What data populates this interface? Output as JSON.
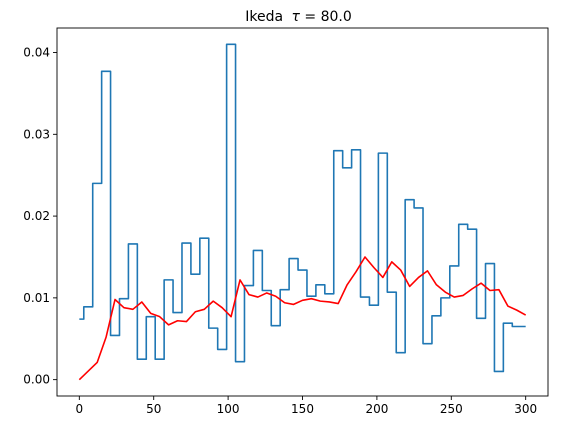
{
  "chart_data": {
    "type": "line",
    "title_prefix": "Ikeda",
    "title_symbol": "τ",
    "title_value": " = 80.0",
    "xlabel": "",
    "ylabel": "",
    "xlim": [
      -15,
      315
    ],
    "ylim": [
      -0.002,
      0.043
    ],
    "xticks": [
      0,
      50,
      100,
      150,
      200,
      250,
      300
    ],
    "xtick_labels": [
      "0",
      "50",
      "100",
      "150",
      "200",
      "250",
      "300"
    ],
    "yticks": [
      0.0,
      0.01,
      0.02,
      0.03,
      0.04
    ],
    "ytick_labels": [
      "0.00",
      "0.01",
      "0.02",
      "0.03",
      "0.04"
    ],
    "grid": false,
    "series": [
      {
        "color": "#1f77b4",
        "style": "steps",
        "x": [
          0,
          6,
          12,
          18,
          24,
          30,
          36,
          42,
          48,
          54,
          60,
          66,
          72,
          78,
          84,
          90,
          96,
          102,
          108,
          114,
          120,
          126,
          132,
          138,
          144,
          150,
          156,
          162,
          168,
          174,
          180,
          186,
          192,
          198,
          204,
          210,
          216,
          222,
          228,
          234,
          240,
          246,
          252,
          258,
          264,
          270,
          276,
          282,
          288,
          294,
          300
        ],
        "y": [
          0.0074,
          0.0089,
          0.024,
          0.0377,
          0.0054,
          0.0099,
          0.0166,
          0.0025,
          0.0077,
          0.0025,
          0.0122,
          0.0082,
          0.0167,
          0.0129,
          0.0173,
          0.0063,
          0.0037,
          0.041,
          0.0022,
          0.0115,
          0.0158,
          0.0109,
          0.0066,
          0.011,
          0.0148,
          0.0134,
          0.0102,
          0.0116,
          0.0105,
          0.028,
          0.0259,
          0.0281,
          0.0101,
          0.0091,
          0.0277,
          0.0107,
          0.0033,
          0.022,
          0.021,
          0.0044,
          0.0078,
          0.01,
          0.0139,
          0.019,
          0.0184,
          0.0075,
          0.0142,
          0.001,
          0.0069,
          0.0065,
          0.0065
        ]
      },
      {
        "color": "#ff0000",
        "style": "line",
        "x": [
          0,
          12,
          18,
          24,
          30,
          36,
          42,
          48,
          54,
          60,
          66,
          72,
          78,
          84,
          90,
          96,
          102,
          108,
          114,
          120,
          126,
          132,
          138,
          144,
          150,
          156,
          162,
          168,
          174,
          180,
          186,
          192,
          198,
          204,
          210,
          216,
          222,
          228,
          234,
          240,
          246,
          252,
          258,
          264,
          270,
          276,
          282,
          288,
          294,
          300
        ],
        "y": [
          0.0,
          0.0021,
          0.0052,
          0.0098,
          0.0088,
          0.0086,
          0.0095,
          0.0081,
          0.0077,
          0.0067,
          0.0072,
          0.0071,
          0.0083,
          0.0086,
          0.0096,
          0.0088,
          0.0077,
          0.0122,
          0.0104,
          0.0101,
          0.0106,
          0.0102,
          0.0094,
          0.0092,
          0.0097,
          0.0099,
          0.0096,
          0.0095,
          0.0093,
          0.0116,
          0.0132,
          0.015,
          0.0137,
          0.0125,
          0.0144,
          0.0134,
          0.0114,
          0.0125,
          0.0133,
          0.0116,
          0.0107,
          0.0101,
          0.0103,
          0.0111,
          0.0118,
          0.0109,
          0.011,
          0.009,
          0.0085,
          0.0079
        ]
      }
    ]
  }
}
